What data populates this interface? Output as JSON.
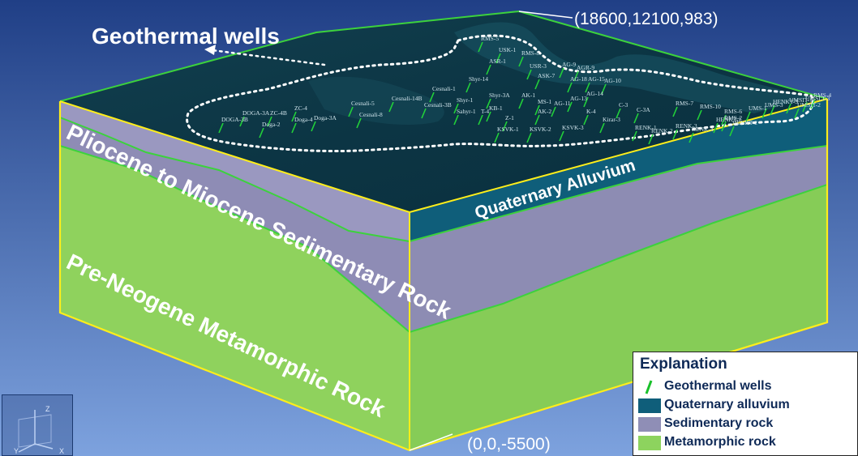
{
  "annotations": {
    "geothermal_wells_label": "Geothermal wells",
    "top_corner_coord": "(18600,12100,983)",
    "bottom_corner_coord": "(0,0,-5500)"
  },
  "layers": {
    "quaternary": "Quaternary Alluvium",
    "sedimentary": "Pliocene to Miocene Sedimentary Rock",
    "metamorphic": "Pre-Neogene Metamorphic Rock"
  },
  "well_labels": [
    "RMS-5",
    "USK-1",
    "RMS-8",
    "ASR-1",
    "USR-3",
    "AG-9",
    "AGR-9",
    "Shyr-14",
    "ASK-7",
    "AG-18",
    "AG-15",
    "AG-10",
    "Cesnali-14B",
    "Cesnali-1",
    "Cesnali-5",
    "Shyr-1",
    "Shyr-3A",
    "AG-14",
    "AG-13",
    "AG-11",
    "MS-1",
    "KB-1",
    "C-3",
    "C-3A",
    "RMS-7",
    "RMS-10",
    "RMS-6",
    "ZC-4",
    "ZC-4B",
    "DOGA-3A",
    "DOGA-3B",
    "Doga-4",
    "Doga-2",
    "Doga-3A",
    "Cesnali-8",
    "Cesnali-3B",
    "Sahyr-1",
    "AK-1",
    "AK-2",
    "T-4",
    "Z-1",
    "K-4",
    "Kirar-3",
    "UMS-1",
    "UMS-3",
    "RMS-2",
    "KSVK-1",
    "KSVK-2",
    "KSVK-3",
    "RENK-1",
    "RENK-2",
    "RENK-3",
    "RENK-4",
    "HENKT-1",
    "HENKT-2",
    "HENKT-3",
    "UMSIT-1",
    "UMSIT-2",
    "UMSLT-3",
    "RMS-4"
  ],
  "legend": {
    "title": "Explanation",
    "items": [
      {
        "label": "Geothermal wells",
        "color": "#19c02a",
        "kind": "well"
      },
      {
        "label": "Quaternary alluvium",
        "color": "#0f5e7a",
        "kind": "swatch"
      },
      {
        "label": "Sedimentary rock",
        "color": "#8f8eb6",
        "kind": "swatch"
      },
      {
        "label": "Metamorphic rock",
        "color": "#8dd35e",
        "kind": "swatch"
      }
    ]
  },
  "axis_triad": {
    "z": "Z",
    "y": "Y",
    "x": "X"
  },
  "colors": {
    "background_top": "#25488f",
    "background_bottom": "#6f96d8",
    "surface": "#0f3a4a",
    "alluvium": "#0f5e7a",
    "sedimentary": "#8f8eb6",
    "metamorphic": "#8dd35e",
    "outline": "#ffee1a",
    "boundary": "#3cd23c"
  }
}
